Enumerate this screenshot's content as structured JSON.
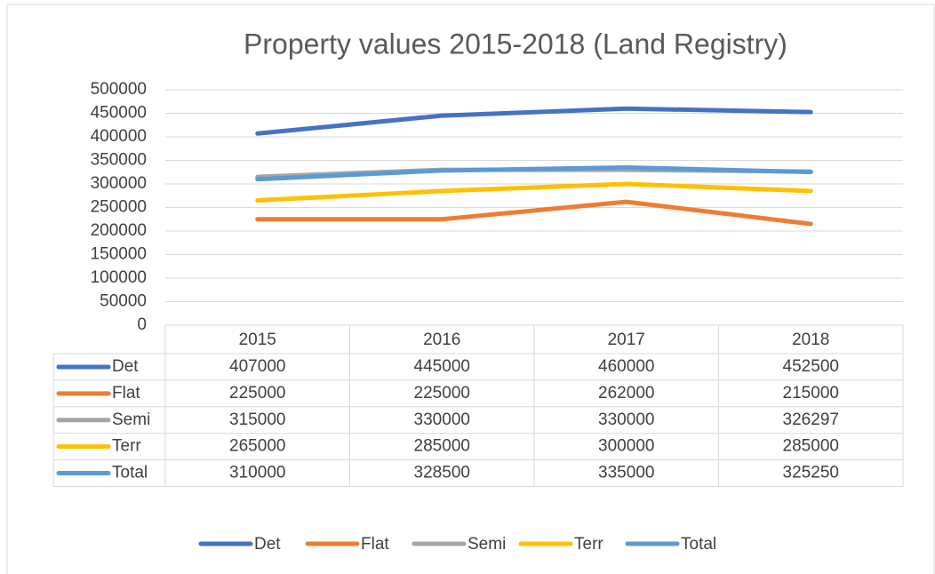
{
  "chart_data": {
    "type": "line",
    "title": "Property values 2015-2018 (Land Registry)",
    "categories": [
      "2015",
      "2016",
      "2017",
      "2018"
    ],
    "series": [
      {
        "name": "Det",
        "color": "#4472c4",
        "values": [
          407000,
          445000,
          460000,
          452500
        ]
      },
      {
        "name": "Flat",
        "color": "#ed7d31",
        "values": [
          225000,
          225000,
          262000,
          215000
        ]
      },
      {
        "name": "Semi",
        "color": "#a5a5a5",
        "values": [
          315000,
          330000,
          330000,
          326297
        ]
      },
      {
        "name": "Terr",
        "color": "#ffc000",
        "values": [
          265000,
          285000,
          300000,
          285000
        ]
      },
      {
        "name": "Total",
        "color": "#5b9bd5",
        "values": [
          310000,
          328500,
          335000,
          325250
        ]
      }
    ],
    "ylim": [
      0,
      500000
    ],
    "yticks": [
      0,
      50000,
      100000,
      150000,
      200000,
      250000,
      300000,
      350000,
      400000,
      450000,
      500000
    ],
    "grid": true,
    "legend": "bottom",
    "data_table": true
  }
}
